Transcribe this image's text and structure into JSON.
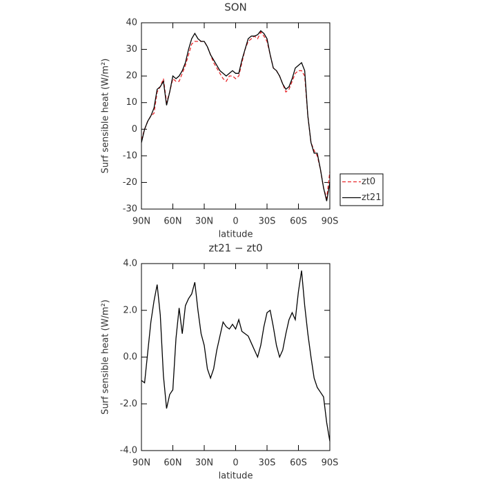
{
  "chart_data": [
    {
      "type": "line",
      "title": "SON",
      "xlabel": "latitude",
      "ylabel": "Surf sensible heat (W/m²)",
      "x": [
        90,
        87,
        84,
        81,
        78,
        75,
        72,
        69,
        66,
        63,
        60,
        57,
        54,
        51,
        48,
        45,
        42,
        39,
        36,
        33,
        30,
        27,
        24,
        21,
        18,
        15,
        12,
        9,
        6,
        3,
        0,
        -3,
        -6,
        -9,
        -12,
        -15,
        -18,
        -21,
        -24,
        -27,
        -30,
        -33,
        -36,
        -39,
        -42,
        -45,
        -48,
        -51,
        -54,
        -57,
        -60,
        -63,
        -66,
        -69,
        -72,
        -75,
        -78,
        -81,
        -84,
        -87,
        -90
      ],
      "xlim": [
        90,
        -90
      ],
      "xticks": [
        {
          "value": 90,
          "label": "90N"
        },
        {
          "value": 60,
          "label": "60N"
        },
        {
          "value": 30,
          "label": "30N"
        },
        0,
        {
          "value": -30,
          "label": "30S"
        },
        {
          "value": -60,
          "label": "60S"
        },
        {
          "value": -90,
          "label": "90S"
        }
      ],
      "ylim": [
        -30,
        40
      ],
      "yticks": [
        -30,
        -20,
        -10,
        0,
        10,
        20,
        30,
        40
      ],
      "legend": "right",
      "series": [
        {
          "name": "zt0",
          "color": "#e8262a",
          "dash": true,
          "values": [
            -4,
            0,
            3,
            5,
            6,
            14,
            16,
            19,
            10,
            14,
            19,
            18,
            18,
            21,
            24,
            28,
            32,
            33,
            33,
            33,
            33,
            31,
            28,
            25,
            23,
            21,
            19,
            18,
            20,
            20,
            19,
            20,
            25,
            30,
            33,
            34,
            35,
            34,
            36.5,
            35,
            33,
            28,
            23,
            22,
            20,
            17,
            14,
            15,
            18,
            21,
            22,
            22,
            20,
            5,
            -5,
            -8,
            -10,
            -15,
            -22,
            -26,
            -16
          ]
        },
        {
          "name": "zt21",
          "color": "#000000",
          "dash": false,
          "values": [
            -5,
            0,
            3,
            5,
            8,
            15,
            16,
            18,
            9,
            14,
            20,
            19,
            20,
            22,
            25,
            30,
            34,
            36,
            34,
            33,
            33,
            31,
            28,
            26,
            24,
            22,
            21,
            20,
            21,
            22,
            21,
            21,
            26,
            30,
            34,
            35,
            35,
            35.5,
            37,
            36,
            34,
            28,
            23,
            22,
            20,
            17,
            15,
            16,
            19,
            23,
            24,
            25,
            22,
            5,
            -5,
            -9,
            -9,
            -15,
            -22,
            -27,
            -20
          ]
        }
      ]
    },
    {
      "type": "line",
      "title": "zt21 − zt0",
      "xlabel": "latitude",
      "ylabel": "Surf sensible heat (W/m²)",
      "x": [
        90,
        87,
        84,
        81,
        78,
        75,
        72,
        69,
        66,
        63,
        60,
        57,
        54,
        51,
        48,
        45,
        42,
        39,
        36,
        33,
        30,
        27,
        24,
        21,
        18,
        15,
        12,
        9,
        6,
        3,
        0,
        -3,
        -6,
        -9,
        -12,
        -15,
        -18,
        -21,
        -24,
        -27,
        -30,
        -33,
        -36,
        -39,
        -42,
        -45,
        -48,
        -51,
        -54,
        -57,
        -60,
        -63,
        -66,
        -69,
        -72,
        -75,
        -78,
        -81,
        -84,
        -87,
        -90
      ],
      "xlim": [
        90,
        -90
      ],
      "xticks": [
        {
          "value": 90,
          "label": "90N"
        },
        {
          "value": 60,
          "label": "60N"
        },
        {
          "value": 30,
          "label": "30N"
        },
        0,
        {
          "value": -30,
          "label": "30S"
        },
        {
          "value": -60,
          "label": "60S"
        },
        {
          "value": -90,
          "label": "90S"
        }
      ],
      "ylim": [
        -4,
        4
      ],
      "yticks": [
        {
          "value": -4,
          "label": "-4.0"
        },
        {
          "value": -2,
          "label": "-2.0"
        },
        {
          "value": 0,
          "label": "0.0"
        },
        {
          "value": 2,
          "label": "2.0"
        },
        {
          "value": 4,
          "label": "4.0"
        }
      ],
      "series": [
        {
          "color": "#000000",
          "dash": false,
          "values": [
            -1.0,
            -1.1,
            0.2,
            1.5,
            2.4,
            3.1,
            1.8,
            -0.8,
            -2.2,
            -1.6,
            -1.4,
            0.8,
            2.1,
            1.0,
            2.2,
            2.5,
            2.7,
            3.2,
            2.0,
            1.0,
            0.5,
            -0.5,
            -0.9,
            -0.5,
            0.3,
            0.9,
            1.5,
            1.3,
            1.2,
            1.4,
            1.2,
            1.6,
            1.1,
            1.0,
            0.9,
            0.6,
            0.3,
            0.0,
            0.5,
            1.3,
            1.9,
            2.0,
            1.3,
            0.5,
            0.0,
            0.3,
            1.0,
            1.6,
            1.9,
            1.6,
            2.8,
            3.7,
            2.2,
            1.0,
            0.0,
            -0.9,
            -1.3,
            -1.5,
            -1.7,
            -2.8,
            -3.6
          ]
        }
      ]
    }
  ]
}
